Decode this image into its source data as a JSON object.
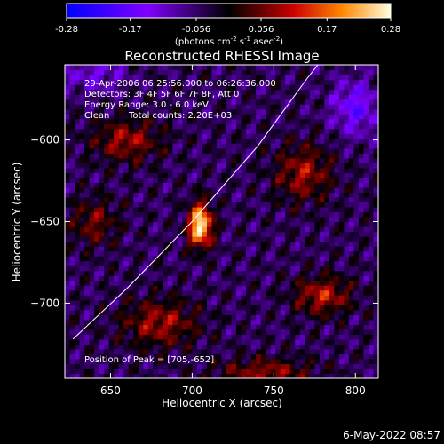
{
  "colorbar": {
    "ticks": [
      "-0.28",
      "-0.17",
      "-0.056",
      "0.056",
      "0.17",
      "0.28"
    ],
    "units_prefix": "(photons cm",
    "units_exp1": "-2",
    "units_mid1": " s",
    "units_exp2": "-1",
    "units_mid2": " asec",
    "units_exp3": "-2",
    "units_suffix": ")"
  },
  "footer": {
    "date": "6-May-2022 08:57"
  },
  "chart_data": {
    "type": "heatmap",
    "title": "Reconstructed RHESSI Image",
    "xlabel": "Heliocentric X (arcsec)",
    "ylabel": "Heliocentric Y (arcsec)",
    "xlim": [
      622,
      814
    ],
    "ylim": [
      -746,
      -554
    ],
    "xticks": [
      650,
      700,
      750,
      800
    ],
    "yticks": [
      -600,
      -650,
      -700
    ],
    "colorbar_range": [
      -0.28,
      0.28
    ],
    "annotations": [
      "29-Apr-2006 06:25:56.000 to 06:26:36.000",
      "Detectors: 3F 4F 5F 6F 7F 8F, Att 0",
      "Energy Range: 3.0 - 6.0 keV",
      "Clean",
      "Total counts: 2.20E+03",
      "Position of Peak = [705,-652]"
    ],
    "peak": {
      "x": 705,
      "y": -652,
      "value": 0.28
    },
    "sources": [
      {
        "x": 705,
        "y": -652,
        "sx": 5,
        "sy": 9,
        "amp": 0.33
      },
      {
        "x": 660,
        "y": -600,
        "sx": 14,
        "sy": 9,
        "amp": 0.13
      },
      {
        "x": 680,
        "y": -712,
        "sx": 16,
        "sy": 10,
        "amp": 0.13
      },
      {
        "x": 768,
        "y": -620,
        "sx": 12,
        "sy": 12,
        "amp": 0.13
      },
      {
        "x": 780,
        "y": -695,
        "sx": 12,
        "sy": 8,
        "amp": 0.15
      },
      {
        "x": 745,
        "y": -742,
        "sx": 20,
        "sy": 6,
        "amp": 0.12
      },
      {
        "x": 640,
        "y": -650,
        "sx": 10,
        "sy": 10,
        "amp": 0.1
      },
      {
        "x": 800,
        "y": -580,
        "sx": 10,
        "sy": 12,
        "amp": -0.12
      },
      {
        "x": 640,
        "y": -560,
        "sx": 14,
        "sy": 8,
        "amp": -0.08
      }
    ],
    "limb_points": [
      [
        627,
        -722
      ],
      [
        660,
        -691
      ],
      [
        700,
        -650
      ],
      [
        740,
        -604
      ],
      [
        770,
        -563
      ],
      [
        777,
        -554
      ]
    ]
  }
}
